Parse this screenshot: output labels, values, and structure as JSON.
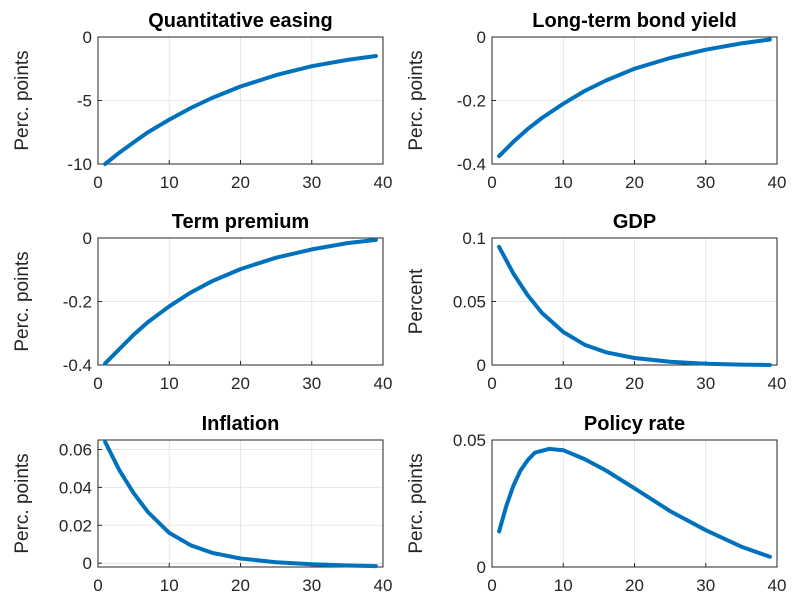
{
  "chart_data": [
    {
      "type": "line",
      "title": "Quantitative easing",
      "ylabel": "Perc. points",
      "xlim": [
        0,
        40
      ],
      "ylim": [
        -10,
        0
      ],
      "xticks": [
        0,
        10,
        20,
        30,
        40
      ],
      "yticks": [
        0,
        -5,
        -10
      ],
      "ytick_labels": [
        "0",
        "-5",
        "-10"
      ],
      "grid": true,
      "color": "#0072BD",
      "series": [
        {
          "x": [
            1,
            3,
            5,
            7,
            10,
            13,
            16,
            20,
            25,
            30,
            35,
            39
          ],
          "values": [
            -10.0,
            -9.1,
            -8.3,
            -7.5,
            -6.5,
            -5.6,
            -4.8,
            -3.9,
            -3.0,
            -2.3,
            -1.8,
            -1.5
          ]
        }
      ]
    },
    {
      "type": "line",
      "title": "Long-term bond yield",
      "ylabel": "Perc. points",
      "xlim": [
        0,
        40
      ],
      "ylim": [
        -0.4,
        0
      ],
      "xticks": [
        0,
        10,
        20,
        30,
        40
      ],
      "yticks": [
        0,
        -0.2,
        -0.4
      ],
      "ytick_labels": [
        "0",
        "-0.2",
        "-0.4"
      ],
      "grid": true,
      "color": "#0072BD",
      "series": [
        {
          "x": [
            1,
            3,
            5,
            7,
            10,
            13,
            16,
            20,
            25,
            30,
            35,
            39
          ],
          "values": [
            -0.375,
            -0.33,
            -0.29,
            -0.255,
            -0.21,
            -0.17,
            -0.137,
            -0.1,
            -0.066,
            -0.04,
            -0.02,
            -0.008
          ]
        }
      ]
    },
    {
      "type": "line",
      "title": "Term premium",
      "ylabel": "Perc. points",
      "xlim": [
        0,
        40
      ],
      "ylim": [
        -0.4,
        0
      ],
      "xticks": [
        0,
        10,
        20,
        30,
        40
      ],
      "yticks": [
        0,
        -0.2,
        -0.4
      ],
      "ytick_labels": [
        "0",
        "-0.2",
        "-0.4"
      ],
      "grid": true,
      "color": "#0072BD",
      "series": [
        {
          "x": [
            1,
            3,
            5,
            7,
            10,
            13,
            16,
            20,
            25,
            30,
            35,
            39
          ],
          "values": [
            -0.395,
            -0.35,
            -0.305,
            -0.265,
            -0.215,
            -0.172,
            -0.136,
            -0.098,
            -0.062,
            -0.036,
            -0.016,
            -0.006
          ]
        }
      ]
    },
    {
      "type": "line",
      "title": "GDP",
      "ylabel": "Percent",
      "xlim": [
        0,
        40
      ],
      "ylim": [
        0,
        0.1
      ],
      "xticks": [
        0,
        10,
        20,
        30,
        40
      ],
      "yticks": [
        0,
        0.05,
        0.1
      ],
      "ytick_labels": [
        "0",
        "0.05",
        "0.1"
      ],
      "grid": true,
      "color": "#0072BD",
      "series": [
        {
          "x": [
            1,
            3,
            5,
            7,
            10,
            13,
            16,
            20,
            25,
            30,
            35,
            39
          ],
          "values": [
            0.093,
            0.072,
            0.055,
            0.041,
            0.026,
            0.016,
            0.01,
            0.0055,
            0.0025,
            0.001,
            0.0003,
            0.0
          ]
        }
      ]
    },
    {
      "type": "line",
      "title": "Inflation",
      "ylabel": "Perc. points",
      "xlim": [
        0,
        40
      ],
      "ylim": [
        -0.002,
        0.065
      ],
      "xticks": [
        0,
        10,
        20,
        30,
        40
      ],
      "yticks": [
        0,
        0.02,
        0.04,
        0.06
      ],
      "ytick_labels": [
        "0",
        "0.02",
        "0.04",
        "0.06"
      ],
      "grid": true,
      "color": "#0072BD",
      "series": [
        {
          "x": [
            1,
            3,
            5,
            7,
            10,
            13,
            16,
            20,
            25,
            30,
            35,
            39
          ],
          "values": [
            0.064,
            0.049,
            0.037,
            0.027,
            0.016,
            0.0095,
            0.0055,
            0.0025,
            0.0005,
            -0.0005,
            -0.0012,
            -0.0015
          ]
        }
      ]
    },
    {
      "type": "line",
      "title": "Policy rate",
      "ylabel": "Perc. points",
      "xlim": [
        0,
        40
      ],
      "ylim": [
        0,
        0.05
      ],
      "xticks": [
        0,
        10,
        20,
        30,
        40
      ],
      "yticks": [
        0,
        0.05
      ],
      "ytick_labels": [
        "0",
        "0.05"
      ],
      "grid": true,
      "color": "#0072BD",
      "series": [
        {
          "x": [
            1,
            2,
            3,
            4,
            5,
            6,
            8,
            10,
            13,
            16,
            20,
            25,
            30,
            35,
            39
          ],
          "values": [
            0.014,
            0.024,
            0.032,
            0.038,
            0.042,
            0.045,
            0.0465,
            0.046,
            0.0425,
            0.038,
            0.031,
            0.022,
            0.0145,
            0.008,
            0.004
          ]
        }
      ]
    }
  ]
}
